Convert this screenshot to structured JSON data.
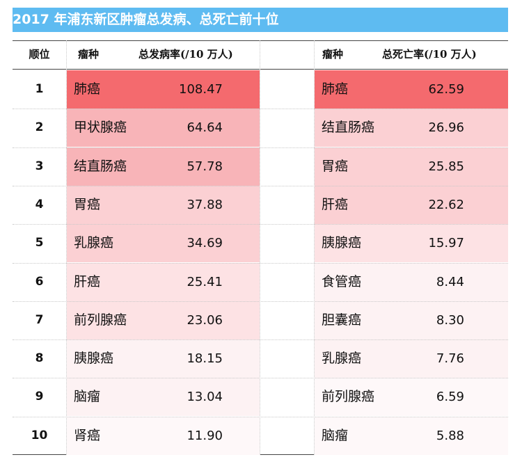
{
  "title": "2017 年浦东新区肿瘤总发病、总死亡前十位",
  "headers": {
    "rank": "顺位",
    "inc_name": "瘤种",
    "inc_rate": "总发病率(/10 万人)",
    "mort_name": "瘤种",
    "mort_rate": "总死亡率(/10 万人)"
  },
  "colors": {
    "title_bg": "#5ebbf1",
    "top1": "#f46a6e",
    "high": "#f8b4b8",
    "mid": "#fbd0d3",
    "low": "#fde2e4",
    "faint": "#fdf2f3",
    "fainter": "#fef8f9"
  },
  "rows": [
    {
      "rank": "1",
      "inc_name": "肺癌",
      "inc_rate": "108.47",
      "inc_color": "top1",
      "mort_name": "肺癌",
      "mort_rate": "62.59",
      "mort_color": "top1"
    },
    {
      "rank": "2",
      "inc_name": "甲状腺癌",
      "inc_rate": "64.64",
      "inc_color": "high",
      "mort_name": "结直肠癌",
      "mort_rate": "26.96",
      "mort_color": "mid"
    },
    {
      "rank": "3",
      "inc_name": "结直肠癌",
      "inc_rate": "57.78",
      "inc_color": "high",
      "mort_name": "胃癌",
      "mort_rate": "25.85",
      "mort_color": "mid"
    },
    {
      "rank": "4",
      "inc_name": "胃癌",
      "inc_rate": "37.88",
      "inc_color": "mid",
      "mort_name": "肝癌",
      "mort_rate": "22.62",
      "mort_color": "mid"
    },
    {
      "rank": "5",
      "inc_name": "乳腺癌",
      "inc_rate": "34.69",
      "inc_color": "mid",
      "mort_name": "胰腺癌",
      "mort_rate": "15.97",
      "mort_color": "low"
    },
    {
      "rank": "6",
      "inc_name": "肝癌",
      "inc_rate": "25.41",
      "inc_color": "low",
      "mort_name": "食管癌",
      "mort_rate": "8.44",
      "mort_color": "faint"
    },
    {
      "rank": "7",
      "inc_name": "前列腺癌",
      "inc_rate": "23.06",
      "inc_color": "low",
      "mort_name": "胆囊癌",
      "mort_rate": "8.30",
      "mort_color": "faint"
    },
    {
      "rank": "8",
      "inc_name": "胰腺癌",
      "inc_rate": "18.15",
      "inc_color": "faint",
      "mort_name": "乳腺癌",
      "mort_rate": "7.76",
      "mort_color": "faint"
    },
    {
      "rank": "9",
      "inc_name": "脑瘤",
      "inc_rate": "13.04",
      "inc_color": "faint",
      "mort_name": "前列腺癌",
      "mort_rate": "6.59",
      "mort_color": "fainter"
    },
    {
      "rank": "10",
      "inc_name": "肾癌",
      "inc_rate": "11.90",
      "inc_color": "fainter",
      "mort_name": "脑瘤",
      "mort_rate": "5.88",
      "mort_color": "fainter"
    }
  ]
}
